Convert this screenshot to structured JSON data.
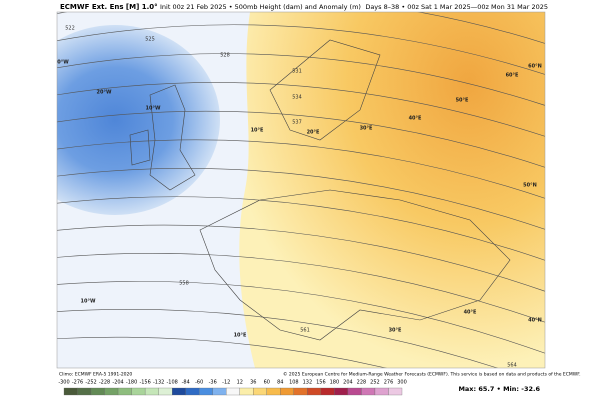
{
  "header": {
    "product": "ECMWF Ext. Ens [M] 1.0°",
    "init": "Init 00z 21 Feb 2025 • 500mb Height (dam) and Anomaly (m)",
    "valid": "Days 8–38 • 00z Sat 1 Mar 2025—00z Mon 31 Mar 2025"
  },
  "map": {
    "contour_labels": [
      "522",
      "525",
      "528",
      "531",
      "534",
      "537",
      "558",
      "561",
      "564"
    ],
    "lonlat_labels": [
      "0°W",
      "20°W",
      "10°W",
      "10°E",
      "20°E",
      "30°E",
      "40°E",
      "50°E",
      "60°E",
      "60°N",
      "50°N",
      "10°W",
      "40°E",
      "30°E",
      "10°E",
      "40°N"
    ],
    "climo": "Climo: ECMWF ERA-5 1991-2020",
    "copyright": "© 2025 European Centre for Medium-Range Weather Forecasts (ECMWF). This service is based on data and products of the ECMWF."
  },
  "colorbar": {
    "ticks": [
      -300,
      -276,
      -252,
      -228,
      -204,
      -180,
      -156,
      -132,
      -108,
      -84,
      -60,
      -36,
      -12,
      12,
      36,
      60,
      84,
      108,
      132,
      156,
      180,
      204,
      228,
      252,
      276,
      300
    ],
    "colors": [
      "#4a5a3a",
      "#557048",
      "#628a55",
      "#74a266",
      "#8ebd7e",
      "#a9d49a",
      "#c5e6b8",
      "#ddf0d5",
      "#1e4a9c",
      "#2f6bc4",
      "#4a8ee0",
      "#7fb2ee",
      "#f7f7f7",
      "#fbeeaa",
      "#fbd777",
      "#f7bb4c",
      "#ef9a33",
      "#e2722a",
      "#cf4a26",
      "#b82a2c",
      "#a01f4c",
      "#b94a90",
      "#cf77b5",
      "#dea2cf",
      "#ecc9e3"
    ]
  },
  "stats": "Max: 65.7 • Min: -32.6"
}
